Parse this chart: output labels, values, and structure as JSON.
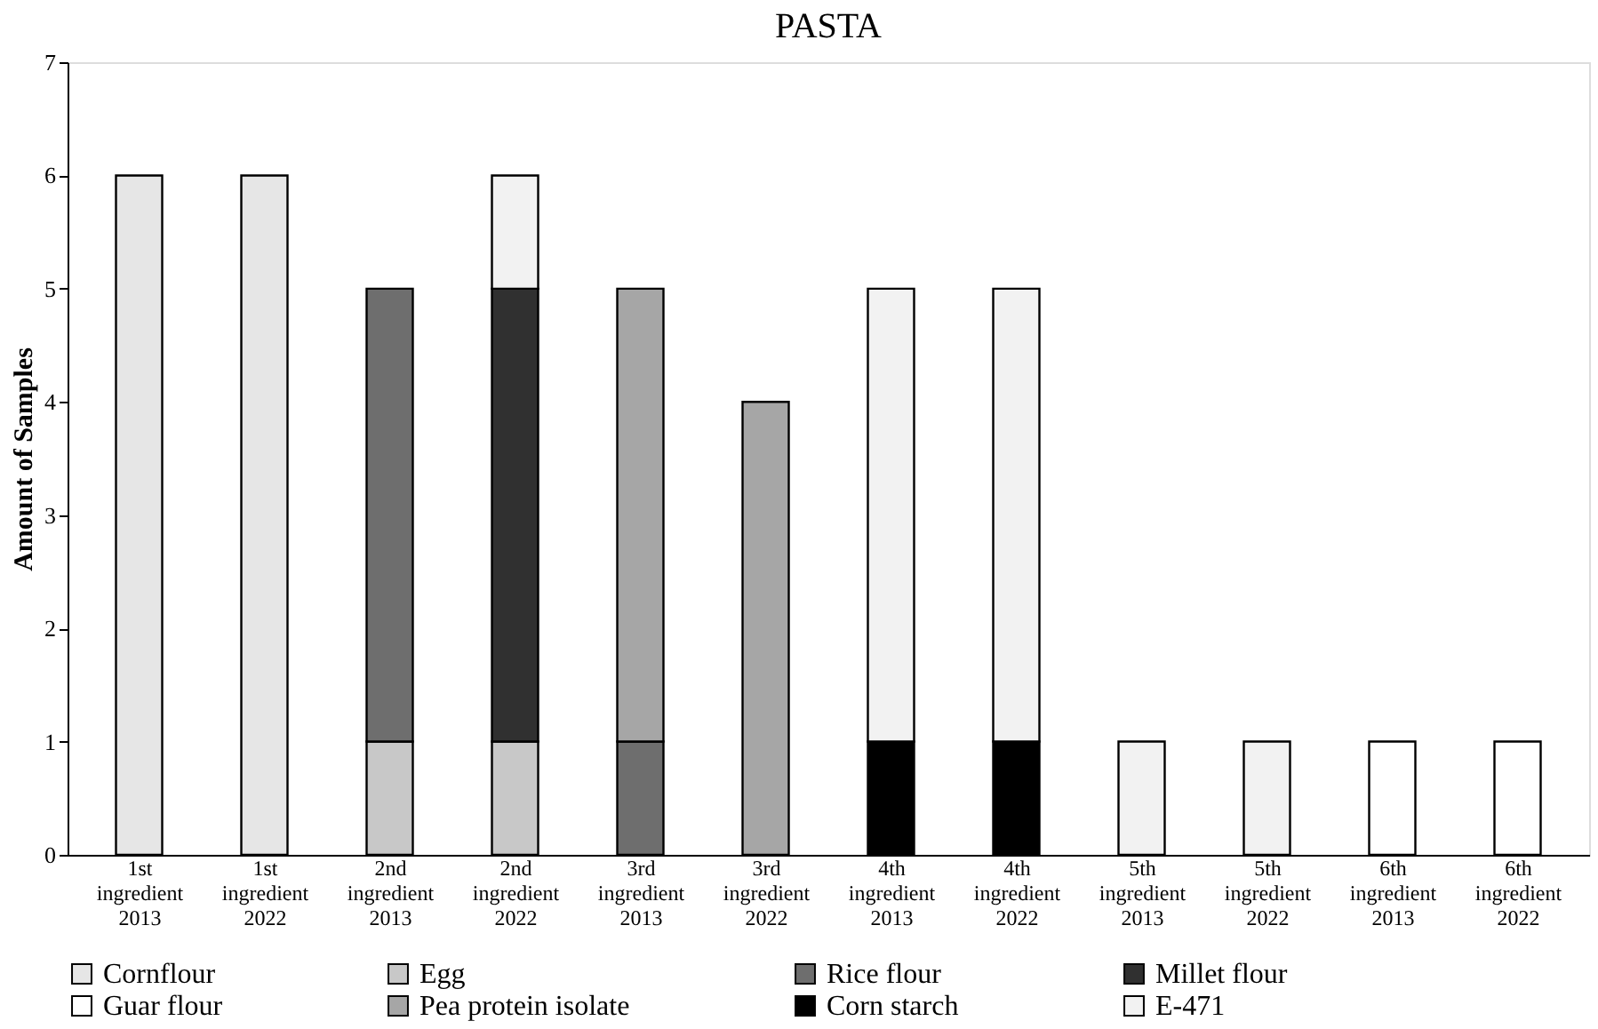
{
  "chart_data": {
    "type": "bar",
    "title": "PASTA",
    "ylabel": "Amount of Samples",
    "stacked": true,
    "categories": [
      "1st ingredient 2013",
      "1st ingredient 2022",
      "2nd ingredient 2013",
      "2nd ingredient 2022",
      "3rd ingredient 2013",
      "3rd ingredient 2022",
      "4th ingredient 2013",
      "4th ingredient 2022",
      "5th ingredient 2013",
      "5th ingredient 2022",
      "6th ingredient 2013",
      "6th ingredient 2022"
    ],
    "series": [
      {
        "name": "Cornflour",
        "color": "#e6e6e6",
        "values": [
          6,
          6,
          null,
          null,
          null,
          null,
          null,
          null,
          null,
          null,
          null,
          null
        ]
      },
      {
        "name": "Egg",
        "color": "#c8c8c8",
        "values": [
          null,
          null,
          1,
          1,
          null,
          null,
          null,
          null,
          null,
          null,
          null,
          null
        ]
      },
      {
        "name": "Rice flour",
        "color": "#6e6e6e",
        "values": [
          null,
          null,
          4,
          null,
          1,
          null,
          null,
          null,
          null,
          null,
          null,
          null
        ]
      },
      {
        "name": "Millet flour",
        "color": "#303030",
        "values": [
          null,
          null,
          null,
          4,
          null,
          null,
          null,
          null,
          null,
          null,
          null,
          null
        ]
      },
      {
        "name": "Guar flour",
        "color": "#ffffff",
        "values": [
          null,
          null,
          null,
          null,
          null,
          null,
          null,
          null,
          null,
          null,
          1,
          1
        ]
      },
      {
        "name": "Pea protein isolate",
        "color": "#a6a6a6",
        "values": [
          null,
          null,
          null,
          null,
          4,
          4,
          null,
          null,
          null,
          null,
          null,
          null
        ]
      },
      {
        "name": "Corn starch",
        "color": "#000000",
        "values": [
          null,
          null,
          null,
          null,
          null,
          null,
          1,
          1,
          null,
          null,
          null,
          null
        ]
      },
      {
        "name": "E-471",
        "color": "#f2f2f2",
        "values": [
          null,
          null,
          null,
          1,
          null,
          null,
          4,
          4,
          1,
          1,
          null,
          null
        ]
      }
    ],
    "ylim": [
      0,
      7
    ],
    "yticks": [
      0,
      1,
      2,
      3,
      4,
      5,
      6,
      7
    ],
    "grid": false,
    "legend": "bottom"
  }
}
